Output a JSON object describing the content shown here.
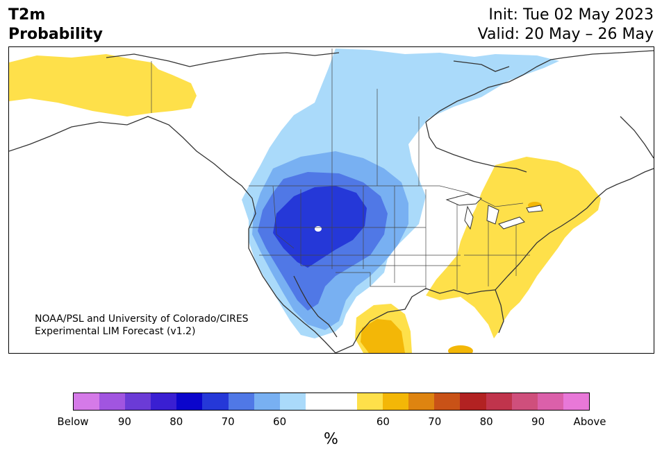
{
  "header": {
    "variable": "T2m",
    "product": "Probability",
    "init": "Init: Tue 02 May 2023",
    "valid": "Valid: 20 May – 26 May"
  },
  "credit": {
    "line1": "NOAA/PSL and University of Colorado/CIRES",
    "line2": "Experimental LIM Forecast (v1.2)"
  },
  "legend": {
    "unit": "%",
    "colors": [
      "#d57ae8",
      "#a155e0",
      "#6b3bd6",
      "#3a1fd2",
      "#0b05cc",
      "#2538d8",
      "#5078e6",
      "#78b0f2",
      "#aadafa",
      "#ffffff",
      "#ffffff",
      "#fee04a",
      "#f3b707",
      "#de8410",
      "#c95217",
      "#b22222",
      "#c0344c",
      "#cf4f7c",
      "#db60aa",
      "#e878d8"
    ],
    "tick_labels": [
      "Below",
      "90",
      "80",
      "70",
      "60",
      "60",
      "70",
      "80",
      "90",
      "Above"
    ]
  },
  "colors": {
    "cold_60": "#aadafa",
    "cold_70": "#78b0f2",
    "cold_80": "#5078e6",
    "cold_90": "#2538d8",
    "warm_60": "#fee04a",
    "warm_70": "#f3b707",
    "warm_80": "#de8410"
  }
}
